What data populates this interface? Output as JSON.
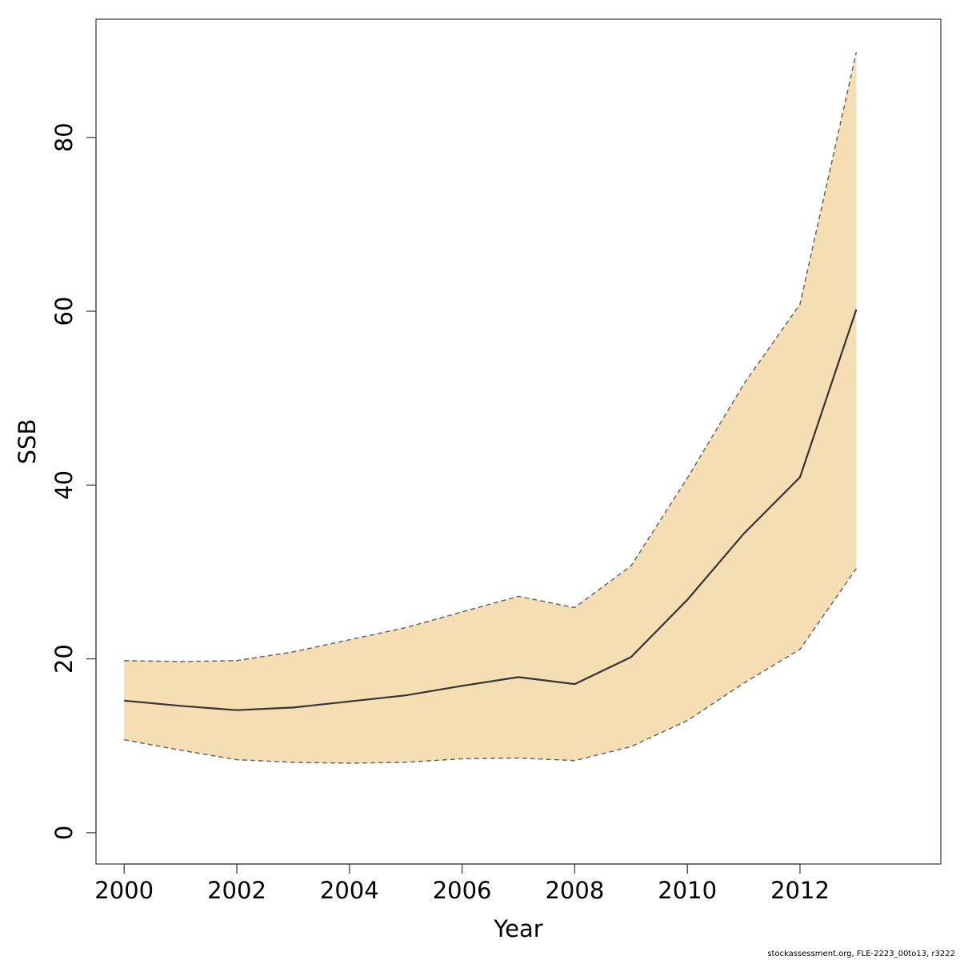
{
  "chart_data": {
    "type": "area",
    "xlabel": "Year",
    "ylabel": "SSB",
    "xlim": [
      1999.5,
      2014.5
    ],
    "ylim": [
      -3.6,
      93.6
    ],
    "x_ticks": [
      2000,
      2002,
      2004,
      2006,
      2008,
      2010,
      2012
    ],
    "y_ticks": [
      0,
      20,
      40,
      60,
      80
    ],
    "grid": false,
    "x": [
      2000,
      2001,
      2002,
      2003,
      2004,
      2005,
      2006,
      2007,
      2008,
      2009,
      2010,
      2011,
      2012,
      2013
    ],
    "series": [
      {
        "role": "estimate",
        "values": [
          15.2,
          14.6,
          14.1,
          14.4,
          15.1,
          15.8,
          16.9,
          17.9,
          17.1,
          20.2,
          26.8,
          34.4,
          40.9,
          60.2
        ]
      },
      {
        "role": "upper",
        "values": [
          19.8,
          19.7,
          19.8,
          20.8,
          22.2,
          23.6,
          25.4,
          27.2,
          25.9,
          30.7,
          40.8,
          51.6,
          60.8,
          89.8
        ]
      },
      {
        "role": "lower",
        "values": [
          10.7,
          9.5,
          8.4,
          8.1,
          8.0,
          8.1,
          8.5,
          8.6,
          8.3,
          9.9,
          12.9,
          17.2,
          21.1,
          30.4
        ]
      }
    ],
    "colors": {
      "band_fill": "#f5deb3",
      "band_edge": "#666666",
      "line": "#333333",
      "axis": "#333333"
    }
  },
  "footer": "stockassessment.org, FLE-2223_00to13, r3222"
}
